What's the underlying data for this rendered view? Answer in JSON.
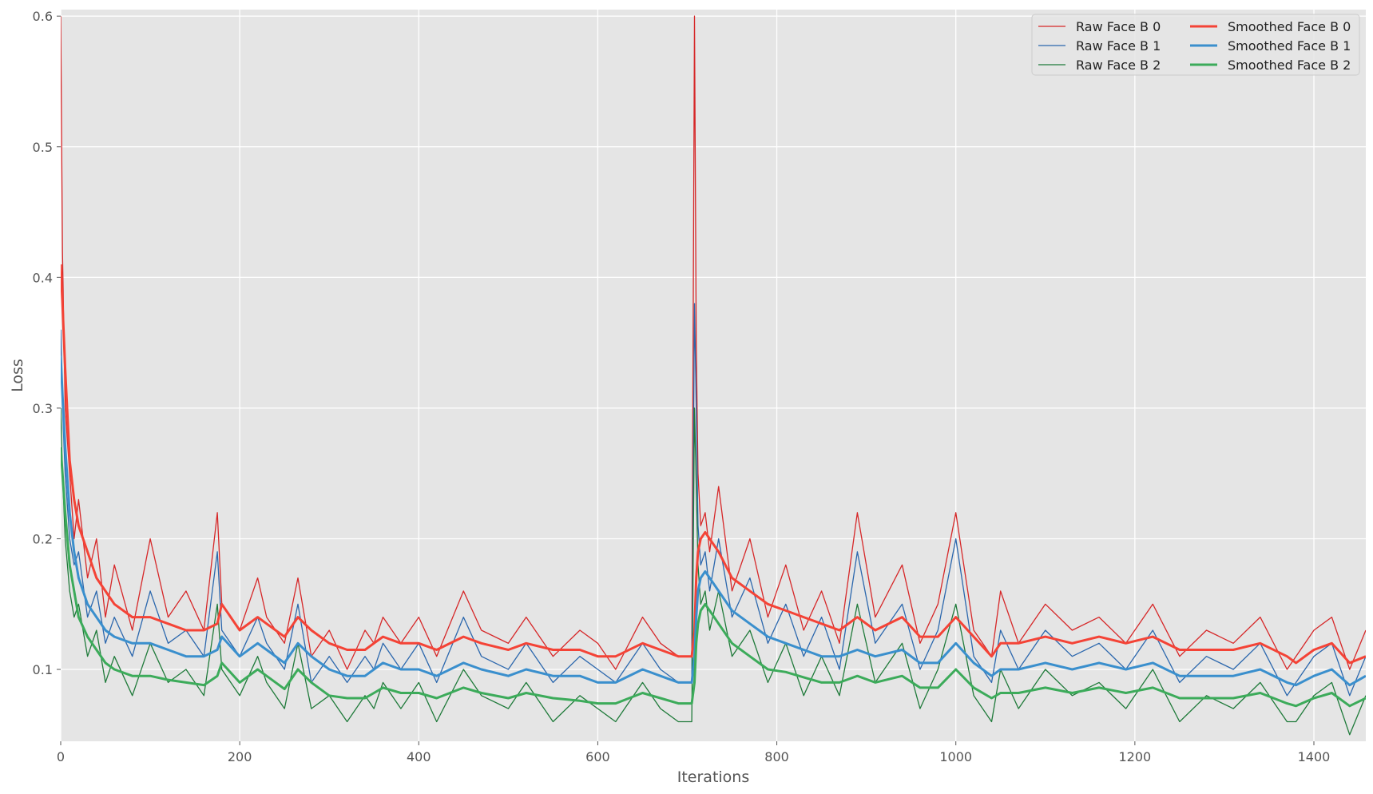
{
  "chart_data": {
    "type": "line",
    "title": "",
    "xlabel": "Iterations",
    "ylabel": "Loss",
    "xlim": [
      0,
      1458
    ],
    "ylim": [
      0.045,
      0.605
    ],
    "grid": true,
    "legend_position": "top-right",
    "x_ticks": [
      0,
      200,
      400,
      600,
      800,
      1000,
      1200,
      1400
    ],
    "y_ticks": [
      0.1,
      0.2,
      0.3,
      0.4,
      0.5,
      0.6
    ],
    "x_tick_labels": [
      "0",
      "200",
      "400",
      "600",
      "800",
      "1000",
      "1200",
      "1400"
    ],
    "y_tick_labels": [
      "0.1",
      "0.2",
      "0.3",
      "0.4",
      "0.5",
      "0.6"
    ],
    "x": [
      0,
      2,
      5,
      10,
      15,
      20,
      30,
      40,
      50,
      60,
      80,
      100,
      120,
      140,
      160,
      175,
      180,
      200,
      220,
      230,
      250,
      265,
      280,
      300,
      320,
      340,
      350,
      360,
      380,
      400,
      420,
      450,
      470,
      500,
      520,
      550,
      580,
      600,
      620,
      650,
      670,
      690,
      705,
      708,
      710,
      712,
      715,
      720,
      725,
      735,
      750,
      770,
      790,
      810,
      830,
      850,
      870,
      890,
      910,
      940,
      960,
      980,
      1000,
      1020,
      1040,
      1050,
      1070,
      1100,
      1130,
      1160,
      1190,
      1220,
      1250,
      1280,
      1310,
      1340,
      1370,
      1380,
      1400,
      1420,
      1440,
      1458
    ],
    "series": [
      {
        "name": "Raw Face B 0",
        "color": "#d62728",
        "width": 1.3,
        "values": [
          0.6,
          0.42,
          0.3,
          0.25,
          0.2,
          0.23,
          0.17,
          0.2,
          0.14,
          0.18,
          0.13,
          0.2,
          0.14,
          0.16,
          0.13,
          0.22,
          0.15,
          0.13,
          0.17,
          0.14,
          0.12,
          0.17,
          0.11,
          0.13,
          0.1,
          0.13,
          0.12,
          0.14,
          0.12,
          0.14,
          0.11,
          0.16,
          0.13,
          0.12,
          0.14,
          0.11,
          0.13,
          0.12,
          0.1,
          0.14,
          0.12,
          0.11,
          0.11,
          0.6,
          0.35,
          0.25,
          0.21,
          0.22,
          0.19,
          0.24,
          0.16,
          0.2,
          0.14,
          0.18,
          0.13,
          0.16,
          0.12,
          0.22,
          0.14,
          0.18,
          0.12,
          0.15,
          0.22,
          0.13,
          0.11,
          0.16,
          0.12,
          0.15,
          0.13,
          0.14,
          0.12,
          0.15,
          0.11,
          0.13,
          0.12,
          0.14,
          0.1,
          0.11,
          0.13,
          0.14,
          0.1,
          0.13
        ]
      },
      {
        "name": "Raw Face B 1",
        "color": "#2b67ad",
        "width": 1.3,
        "values": [
          0.36,
          0.3,
          0.25,
          0.2,
          0.18,
          0.19,
          0.14,
          0.16,
          0.12,
          0.14,
          0.11,
          0.16,
          0.12,
          0.13,
          0.11,
          0.19,
          0.13,
          0.11,
          0.14,
          0.12,
          0.1,
          0.15,
          0.09,
          0.11,
          0.09,
          0.11,
          0.1,
          0.12,
          0.1,
          0.12,
          0.09,
          0.14,
          0.11,
          0.1,
          0.12,
          0.09,
          0.11,
          0.1,
          0.09,
          0.12,
          0.1,
          0.09,
          0.09,
          0.38,
          0.3,
          0.21,
          0.18,
          0.19,
          0.16,
          0.2,
          0.14,
          0.17,
          0.12,
          0.15,
          0.11,
          0.14,
          0.1,
          0.19,
          0.12,
          0.15,
          0.1,
          0.13,
          0.2,
          0.11,
          0.09,
          0.13,
          0.1,
          0.13,
          0.11,
          0.12,
          0.1,
          0.13,
          0.09,
          0.11,
          0.1,
          0.12,
          0.08,
          0.09,
          0.11,
          0.12,
          0.08,
          0.11
        ]
      },
      {
        "name": "Raw Face B 2",
        "color": "#1f7a3a",
        "width": 1.3,
        "values": [
          0.3,
          0.25,
          0.2,
          0.16,
          0.14,
          0.15,
          0.11,
          0.13,
          0.09,
          0.11,
          0.08,
          0.12,
          0.09,
          0.1,
          0.08,
          0.15,
          0.1,
          0.08,
          0.11,
          0.09,
          0.07,
          0.12,
          0.07,
          0.08,
          0.06,
          0.08,
          0.07,
          0.09,
          0.07,
          0.09,
          0.06,
          0.1,
          0.08,
          0.07,
          0.09,
          0.06,
          0.08,
          0.07,
          0.06,
          0.09,
          0.07,
          0.06,
          0.06,
          0.3,
          0.24,
          0.18,
          0.15,
          0.16,
          0.13,
          0.16,
          0.11,
          0.13,
          0.09,
          0.12,
          0.08,
          0.11,
          0.08,
          0.15,
          0.09,
          0.12,
          0.07,
          0.1,
          0.15,
          0.08,
          0.06,
          0.1,
          0.07,
          0.1,
          0.08,
          0.09,
          0.07,
          0.1,
          0.06,
          0.08,
          0.07,
          0.09,
          0.06,
          0.06,
          0.08,
          0.09,
          0.05,
          0.08
        ]
      },
      {
        "name": "Smoothed Face B 0",
        "color": "#f44336",
        "width": 3,
        "values": [
          0.41,
          0.38,
          0.33,
          0.26,
          0.23,
          0.21,
          0.19,
          0.17,
          0.16,
          0.15,
          0.14,
          0.14,
          0.135,
          0.13,
          0.13,
          0.135,
          0.15,
          0.13,
          0.14,
          0.135,
          0.125,
          0.14,
          0.13,
          0.12,
          0.115,
          0.115,
          0.12,
          0.125,
          0.12,
          0.12,
          0.115,
          0.125,
          0.12,
          0.115,
          0.12,
          0.115,
          0.115,
          0.11,
          0.11,
          0.12,
          0.115,
          0.11,
          0.11,
          0.13,
          0.17,
          0.19,
          0.2,
          0.205,
          0.2,
          0.19,
          0.17,
          0.16,
          0.15,
          0.145,
          0.14,
          0.135,
          0.13,
          0.14,
          0.13,
          0.14,
          0.125,
          0.125,
          0.14,
          0.125,
          0.11,
          0.12,
          0.12,
          0.125,
          0.12,
          0.125,
          0.12,
          0.125,
          0.115,
          0.115,
          0.115,
          0.12,
          0.11,
          0.105,
          0.115,
          0.12,
          0.105,
          0.11
        ]
      },
      {
        "name": "Smoothed Face B 1",
        "color": "#3a8fcd",
        "width": 3,
        "values": [
          0.34,
          0.31,
          0.27,
          0.22,
          0.19,
          0.17,
          0.15,
          0.14,
          0.13,
          0.125,
          0.12,
          0.12,
          0.115,
          0.11,
          0.11,
          0.115,
          0.125,
          0.11,
          0.12,
          0.115,
          0.105,
          0.12,
          0.11,
          0.1,
          0.095,
          0.095,
          0.1,
          0.105,
          0.1,
          0.1,
          0.095,
          0.105,
          0.1,
          0.095,
          0.1,
          0.095,
          0.095,
          0.09,
          0.09,
          0.1,
          0.095,
          0.09,
          0.09,
          0.11,
          0.14,
          0.16,
          0.17,
          0.175,
          0.17,
          0.16,
          0.145,
          0.135,
          0.125,
          0.12,
          0.115,
          0.11,
          0.11,
          0.115,
          0.11,
          0.115,
          0.105,
          0.105,
          0.12,
          0.105,
          0.095,
          0.1,
          0.1,
          0.105,
          0.1,
          0.105,
          0.1,
          0.105,
          0.095,
          0.095,
          0.095,
          0.1,
          0.09,
          0.088,
          0.095,
          0.1,
          0.088,
          0.095
        ]
      },
      {
        "name": "Smoothed Face B 2",
        "color": "#3cab5a",
        "width": 3,
        "values": [
          0.27,
          0.25,
          0.22,
          0.18,
          0.16,
          0.14,
          0.125,
          0.115,
          0.105,
          0.1,
          0.095,
          0.095,
          0.092,
          0.09,
          0.088,
          0.095,
          0.105,
          0.09,
          0.1,
          0.095,
          0.085,
          0.1,
          0.09,
          0.08,
          0.078,
          0.078,
          0.082,
          0.086,
          0.082,
          0.082,
          0.078,
          0.086,
          0.082,
          0.078,
          0.082,
          0.078,
          0.076,
          0.074,
          0.074,
          0.082,
          0.078,
          0.074,
          0.074,
          0.09,
          0.12,
          0.135,
          0.145,
          0.15,
          0.145,
          0.135,
          0.12,
          0.11,
          0.1,
          0.098,
          0.094,
          0.09,
          0.09,
          0.095,
          0.09,
          0.095,
          0.086,
          0.086,
          0.1,
          0.086,
          0.078,
          0.082,
          0.082,
          0.086,
          0.082,
          0.086,
          0.082,
          0.086,
          0.078,
          0.078,
          0.078,
          0.082,
          0.074,
          0.072,
          0.078,
          0.082,
          0.072,
          0.078
        ]
      }
    ]
  }
}
